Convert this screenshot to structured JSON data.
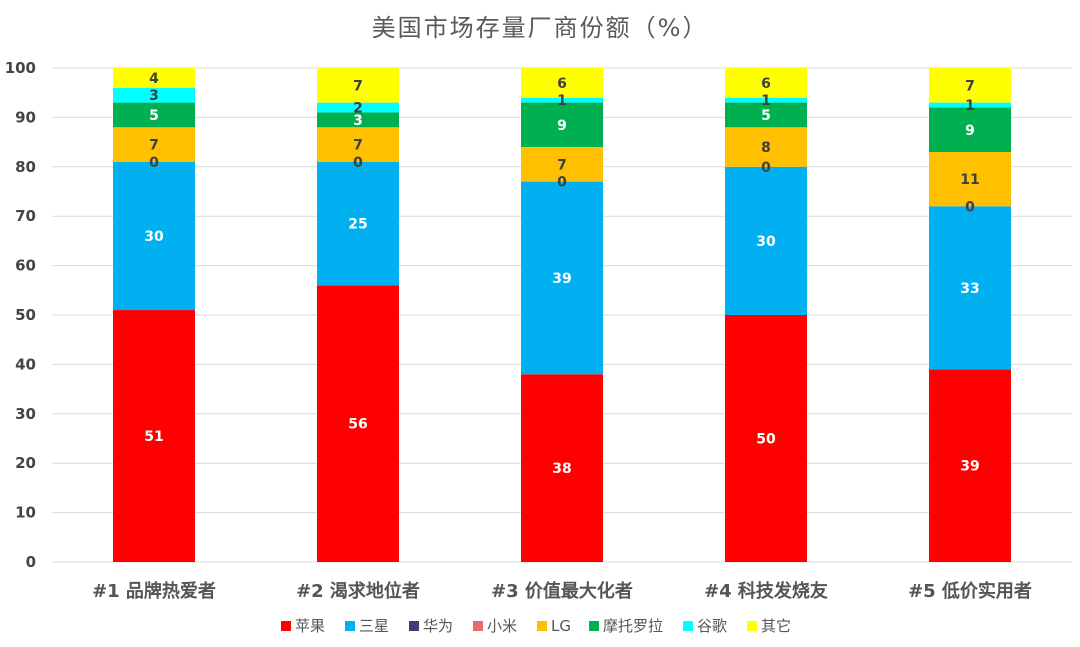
{
  "chart_data": {
    "type": "bar",
    "stacked": true,
    "title": "美国市场存量厂商份额（%）",
    "xlabel": "",
    "ylabel": "",
    "ylim": [
      0,
      100
    ],
    "yticks": [
      0,
      10,
      20,
      30,
      40,
      50,
      60,
      70,
      80,
      90,
      100
    ],
    "grid": true,
    "legend_position": "bottom",
    "categories": [
      "#1 品牌热爱者",
      "#2 渴求地位者",
      "#3 价值最大化者",
      "#4 科技发烧友",
      "#5 低价实用者"
    ],
    "series": [
      {
        "name": "苹果",
        "color": "#ff0000",
        "label_color": "#ffffff",
        "values": [
          51,
          56,
          38,
          50,
          39
        ]
      },
      {
        "name": "三星",
        "color": "#00b0f0",
        "label_color": "#ffffff",
        "values": [
          30,
          25,
          39,
          30,
          33
        ]
      },
      {
        "name": "华为",
        "color": "#3f3f76",
        "label_color": "#ffffff",
        "values": [
          0,
          0,
          0,
          0,
          0
        ]
      },
      {
        "name": "小米",
        "color": "#e46c6c",
        "label_color": "#404040",
        "values": [
          0,
          0,
          0,
          0,
          0
        ]
      },
      {
        "name": "LG",
        "color": "#ffc000",
        "label_color": "#404040",
        "values": [
          7,
          7,
          7,
          8,
          11
        ]
      },
      {
        "name": "摩托罗拉",
        "color": "#00b050",
        "label_color": "#ffffff",
        "values": [
          5,
          3,
          9,
          5,
          9
        ]
      },
      {
        "name": "谷歌",
        "color": "#00ffff",
        "label_color": "#404040",
        "values": [
          3,
          2,
          1,
          1,
          1
        ]
      },
      {
        "name": "其它",
        "color": "#ffff00",
        "label_color": "#404040",
        "values": [
          4,
          7,
          6,
          6,
          7
        ]
      }
    ],
    "visible_labels": {
      "苹果": [
        true,
        true,
        true,
        true,
        true
      ],
      "三星": [
        true,
        true,
        true,
        true,
        true
      ],
      "华为": [
        false,
        false,
        false,
        false,
        false
      ],
      "小米": [
        true,
        true,
        true,
        true,
        true
      ],
      "LG": [
        true,
        true,
        true,
        true,
        true
      ],
      "摩托罗拉": [
        true,
        true,
        true,
        true,
        true
      ],
      "谷歌": [
        true,
        true,
        true,
        true,
        true
      ],
      "其它": [
        true,
        true,
        true,
        true,
        true
      ]
    }
  }
}
